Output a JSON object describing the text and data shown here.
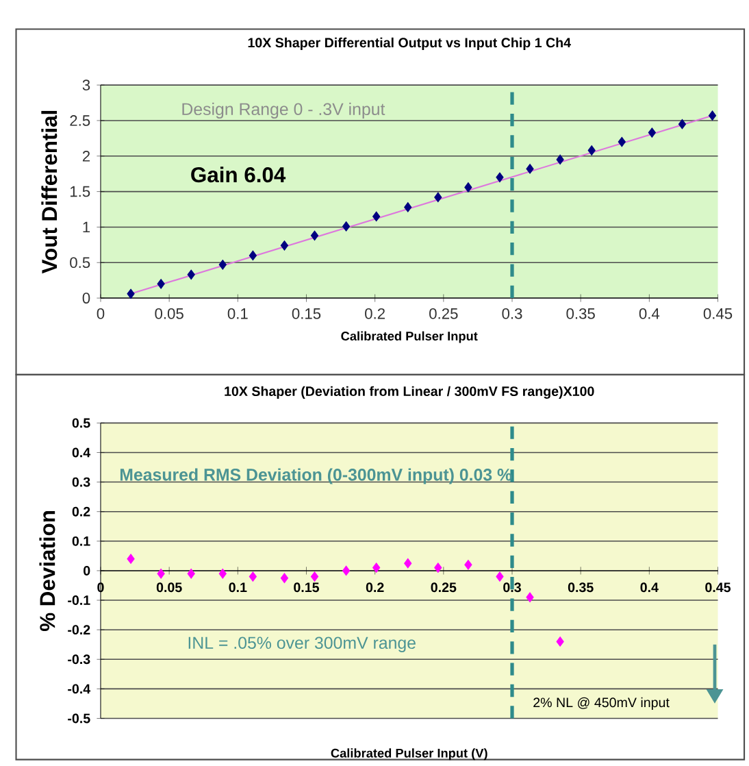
{
  "chart_data": [
    {
      "type": "scatter",
      "title": "10X Shaper  Differential Output  vs  Input Chip 1 Ch4",
      "xlabel": "Calibrated Pulser Input",
      "ylabel": "Vout  Differential",
      "series": [
        {
          "marker": "diamond",
          "color": "#000080",
          "x": [
            0.022,
            0.044,
            0.066,
            0.089,
            0.111,
            0.134,
            0.156,
            0.179,
            0.201,
            0.224,
            0.246,
            0.268,
            0.291,
            0.313,
            0.335,
            0.358,
            0.38,
            0.402,
            0.424,
            0.446
          ],
          "values": [
            0.06,
            0.2,
            0.33,
            0.47,
            0.6,
            0.74,
            0.88,
            1.01,
            1.15,
            1.28,
            1.42,
            1.56,
            1.7,
            1.82,
            1.95,
            2.08,
            2.2,
            2.33,
            2.45,
            2.57
          ]
        },
        {
          "type": "line",
          "marker": "none",
          "color": "#dd77dd",
          "x": [
            0.022,
            0.446
          ],
          "values": [
            0.06,
            2.57
          ]
        }
      ],
      "xlim": [
        0,
        0.45
      ],
      "ylim": [
        0,
        3
      ],
      "xticks": [
        0,
        0.05,
        0.1,
        0.15,
        0.2,
        0.25,
        0.3,
        0.35,
        0.4,
        0.45
      ],
      "yticks": [
        0,
        0.5,
        1,
        1.5,
        2,
        2.5,
        3
      ],
      "grid": "y",
      "ref_lines": [
        {
          "axis": "x",
          "value": 0.3,
          "color": "#2e8b8b",
          "line_style": "dashed"
        }
      ],
      "annotations": [
        "Design Range  0 - .3V input",
        "Gain 6.04"
      ]
    },
    {
      "type": "scatter",
      "title": "10X Shaper    (Deviation from Linear / 300mV FS range)X100",
      "xlabel": "Calibrated Pulser Input (V)",
      "ylabel": "% Deviation",
      "series": [
        {
          "color": "#ff00ff",
          "x": [
            0.022,
            0.044,
            0.066,
            0.089,
            0.111,
            0.134,
            0.156,
            0.179,
            0.201,
            0.224,
            0.246,
            0.268,
            0.291,
            0.313,
            0.335
          ],
          "values": [
            0.04,
            -0.01,
            -0.01,
            -0.01,
            -0.02,
            -0.025,
            -0.02,
            0.0,
            0.01,
            0.025,
            0.01,
            0.02,
            -0.02,
            -0.09,
            -0.24
          ]
        }
      ],
      "marker": "diamond",
      "xlim": [
        0,
        0.45
      ],
      "ylim": [
        -0.5,
        0.5
      ],
      "xticks": [
        0,
        0.05,
        0.1,
        0.15,
        0.2,
        0.25,
        0.3,
        0.35,
        0.4,
        0.45
      ],
      "yticks": [
        -0.5,
        -0.4,
        -0.3,
        -0.2,
        -0.1,
        0,
        0.1,
        0.2,
        0.3,
        0.4,
        0.5
      ],
      "grid": "y",
      "ref_lines": [
        {
          "axis": "x",
          "value": 0.3,
          "color": "#2e8b8b",
          "line_style": "dashed"
        }
      ],
      "annotations": [
        "Measured RMS Deviation  (0-300mV input)  0.03 %",
        "INL = .05% over 300mV range",
        "2% NL @ 450mV input"
      ]
    }
  ]
}
